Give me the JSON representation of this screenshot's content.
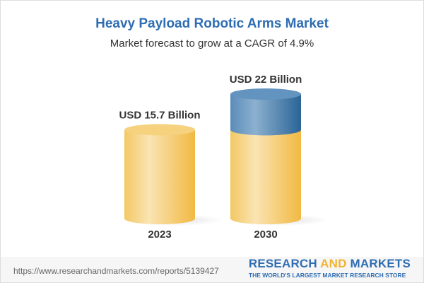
{
  "chart_data": {
    "type": "bar",
    "style": "3d-cylinder",
    "title": "Heavy Payload Robotic Arms Market",
    "subtitle": "Market forecast to grow at a CAGR of 4.9%",
    "categories": [
      "2023",
      "2030"
    ],
    "values": [
      15.7,
      22
    ],
    "unit": "USD Billion",
    "data_labels": [
      "USD 15.7 Billion",
      "USD 22 Billion"
    ],
    "colors": {
      "base": "#f2c45a",
      "growth": "#3f79aa",
      "title": "#2f6db3"
    },
    "grid": false
  },
  "footer": {
    "url": "https://www.researchandmarkets.com/reports/5139427",
    "logo_part1": "RESEARCH ",
    "logo_part2": "AND",
    "logo_part3": " MARKETS",
    "tagline": "THE WORLD'S LARGEST MARKET RESEARCH STORE"
  }
}
